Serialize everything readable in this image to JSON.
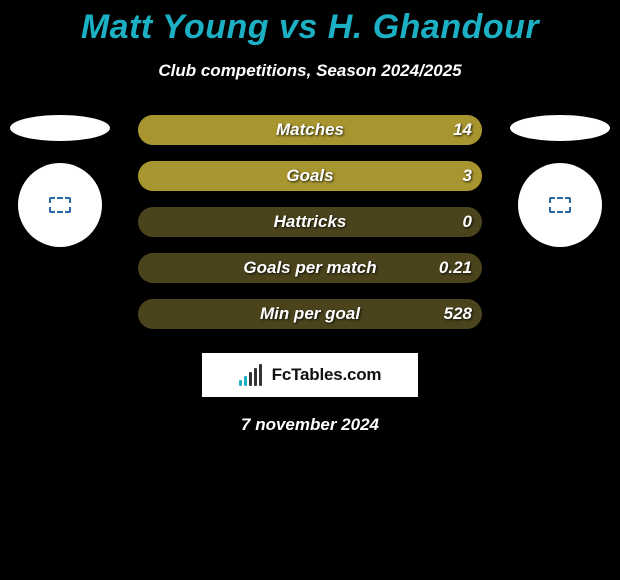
{
  "title": "Matt Young vs H. Ghandour",
  "subtitle": "Club competitions, Season 2024/2025",
  "colors": {
    "background": "#000000",
    "title": "#1bb0c3",
    "text": "#ffffff",
    "bar_fill": "#a7962f",
    "bar_track": "#4a431c",
    "brand_bg": "#ffffff",
    "brand_text": "#111111"
  },
  "stats": [
    {
      "label": "Matches",
      "left_value": "",
      "right_value": "14",
      "bar_pct": 100
    },
    {
      "label": "Goals",
      "left_value": "",
      "right_value": "3",
      "bar_pct": 100
    },
    {
      "label": "Hattricks",
      "left_value": "",
      "right_value": "0",
      "bar_pct": 0
    },
    {
      "label": "Goals per match",
      "left_value": "",
      "right_value": "0.21",
      "bar_pct": 0
    },
    {
      "label": "Min per goal",
      "left_value": "",
      "right_value": "528",
      "bar_pct": 0
    }
  ],
  "brand": "FcTables.com",
  "brand_logo_bars": [
    {
      "h": 6,
      "c": "#1bb0c3"
    },
    {
      "h": 10,
      "c": "#1bb0c3"
    },
    {
      "h": 14,
      "c": "#333333"
    },
    {
      "h": 18,
      "c": "#333333"
    },
    {
      "h": 22,
      "c": "#333333"
    }
  ],
  "date": "7 november 2024"
}
